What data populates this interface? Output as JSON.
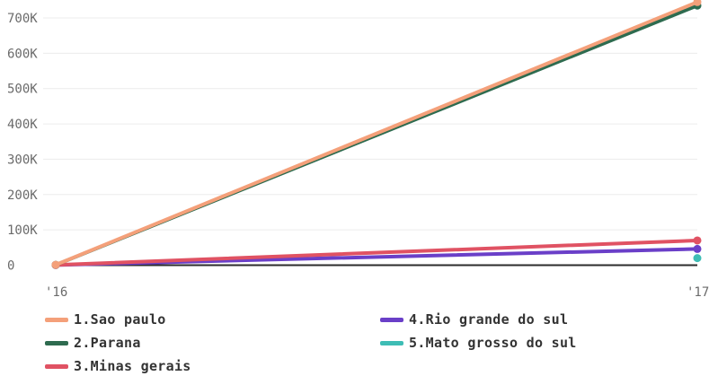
{
  "chart_data": {
    "type": "line",
    "x": [
      "'16",
      "'17"
    ],
    "y_ticks": [
      "0",
      "100K",
      "200K",
      "300K",
      "400K",
      "500K",
      "600K",
      "700K"
    ],
    "ylim": [
      0,
      750000
    ],
    "grid": true,
    "legend_position": "bottom",
    "series": [
      {
        "name": "1.Sao paulo",
        "color": "#f4a07a",
        "values": [
          1000,
          745000
        ]
      },
      {
        "name": "2.Parana",
        "color": "#2e6b4f",
        "values": [
          800,
          735000
        ]
      },
      {
        "name": "3.Minas gerais",
        "color": "#e05263",
        "values": [
          600,
          70000
        ]
      },
      {
        "name": "4.Rio grande do sul",
        "color": "#6a3fc8",
        "values": [
          400,
          46000
        ]
      },
      {
        "name": "5.Mato grosso do sul",
        "color": "#3ebdb5",
        "values": [
          null,
          20000
        ]
      }
    ]
  }
}
